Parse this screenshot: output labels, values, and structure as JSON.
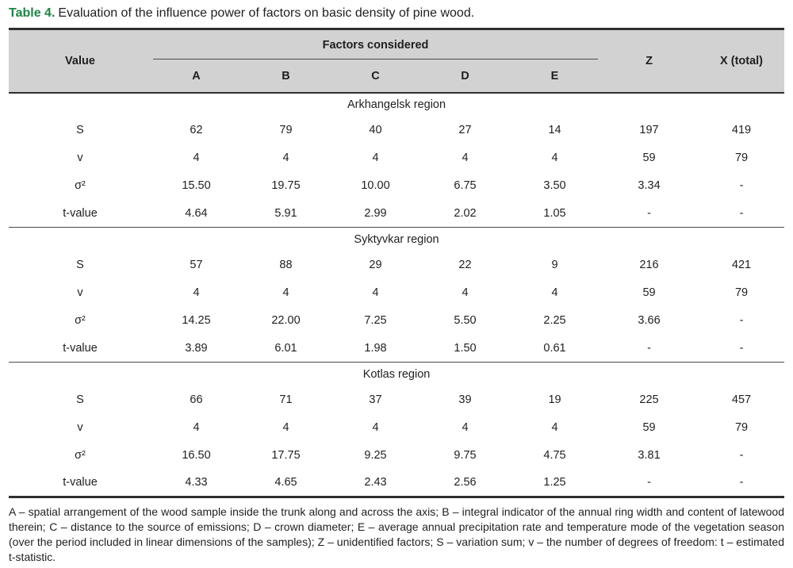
{
  "title": {
    "label": "Table 4.",
    "text": "Evaluation of the influence power of factors on basic density of pine wood."
  },
  "header": {
    "value_col": "Value",
    "factors_group": "Factors considered",
    "factor_cols": [
      "A",
      "B",
      "C",
      "D",
      "E"
    ],
    "z_col": "Z",
    "x_col": "X (total)"
  },
  "sections": [
    {
      "region": "Arkhangelsk region",
      "rows": [
        {
          "label": "S",
          "values": [
            "62",
            "79",
            "40",
            "27",
            "14",
            "197",
            "419"
          ]
        },
        {
          "label": "v",
          "values": [
            "4",
            "4",
            "4",
            "4",
            "4",
            "59",
            "79"
          ]
        },
        {
          "label": "σ²",
          "values": [
            "15.50",
            "19.75",
            "10.00",
            "6.75",
            "3.50",
            "3.34",
            "-"
          ]
        },
        {
          "label": "t-value",
          "values": [
            "4.64",
            "5.91",
            "2.99",
            "2.02",
            "1.05",
            "-",
            "-"
          ]
        }
      ]
    },
    {
      "region": "Syktyvkar region",
      "rows": [
        {
          "label": "S",
          "values": [
            "57",
            "88",
            "29",
            "22",
            "9",
            "216",
            "421"
          ]
        },
        {
          "label": "v",
          "values": [
            "4",
            "4",
            "4",
            "4",
            "4",
            "59",
            "79"
          ]
        },
        {
          "label": "σ²",
          "values": [
            "14.25",
            "22.00",
            "7.25",
            "5.50",
            "2.25",
            "3.66",
            "-"
          ]
        },
        {
          "label": "t-value",
          "values": [
            "3.89",
            "6.01",
            "1.98",
            "1.50",
            "0.61",
            "-",
            "-"
          ]
        }
      ]
    },
    {
      "region": "Kotlas region",
      "rows": [
        {
          "label": "S",
          "values": [
            "66",
            "71",
            "37",
            "39",
            "19",
            "225",
            "457"
          ]
        },
        {
          "label": "v",
          "values": [
            "4",
            "4",
            "4",
            "4",
            "4",
            "59",
            "79"
          ]
        },
        {
          "label": "σ²",
          "values": [
            "16.50",
            "17.75",
            "9.25",
            "9.75",
            "4.75",
            "3.81",
            "-"
          ]
        },
        {
          "label": "t-value",
          "values": [
            "4.33",
            "4.65",
            "2.43",
            "2.56",
            "1.25",
            "-",
            "-"
          ]
        }
      ]
    }
  ],
  "footnote": "A – spatial arrangement of the wood sample inside the trunk along and across the axis; B – integral indicator of the annual ring width and content of latewood therein; C – distance to the source of emissions; D – crown diameter; E – average annual precipitation rate and temperature mode of the vegetation season (over the period included in linear dimensions of the samples); Z – unidentified factors; S – variation sum; v – the number of degrees of freedom: t – estimated t-statistic.",
  "colors": {
    "accent_green": "#1d8545",
    "header_bg": "#d2d2d2",
    "rule_dark": "#2f2f2f"
  }
}
